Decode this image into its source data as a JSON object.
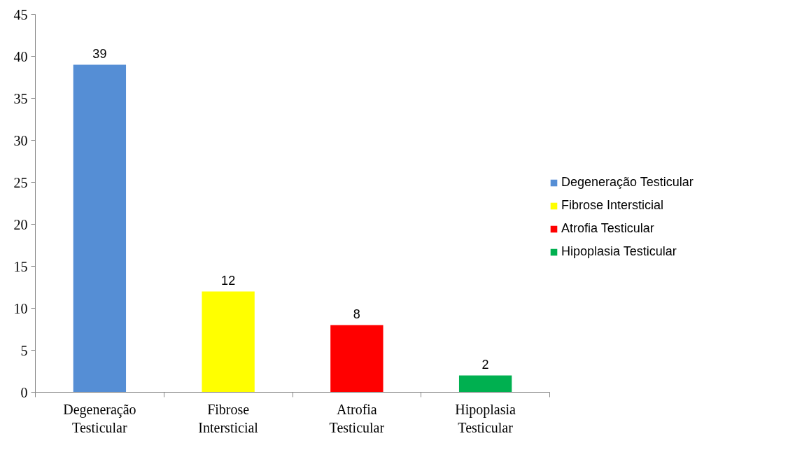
{
  "chart_data": {
    "type": "bar",
    "categories": [
      "Degeneração Testicular",
      "Fibrose Intersticial",
      "Atrofia Testicular",
      "Hipoplasia Testicular"
    ],
    "series": [
      {
        "name": "Degeneração Testicular",
        "color": "#558ed5",
        "values": [
          39,
          null,
          null,
          null
        ]
      },
      {
        "name": "Fibrose Intersticial",
        "color": "#ffff00",
        "values": [
          null,
          12,
          null,
          null
        ]
      },
      {
        "name": "Atrofia Testicular",
        "color": "#ff0000",
        "values": [
          null,
          null,
          8,
          null
        ]
      },
      {
        "name": "Hipoplasia Testicular",
        "color": "#00b050",
        "values": [
          null,
          null,
          null,
          2
        ]
      }
    ],
    "ylim": [
      0,
      45
    ],
    "yticks": [
      0,
      5,
      10,
      15,
      20,
      25,
      30,
      35,
      40,
      45
    ],
    "data_labels": true,
    "grid": false,
    "legend": "right"
  }
}
